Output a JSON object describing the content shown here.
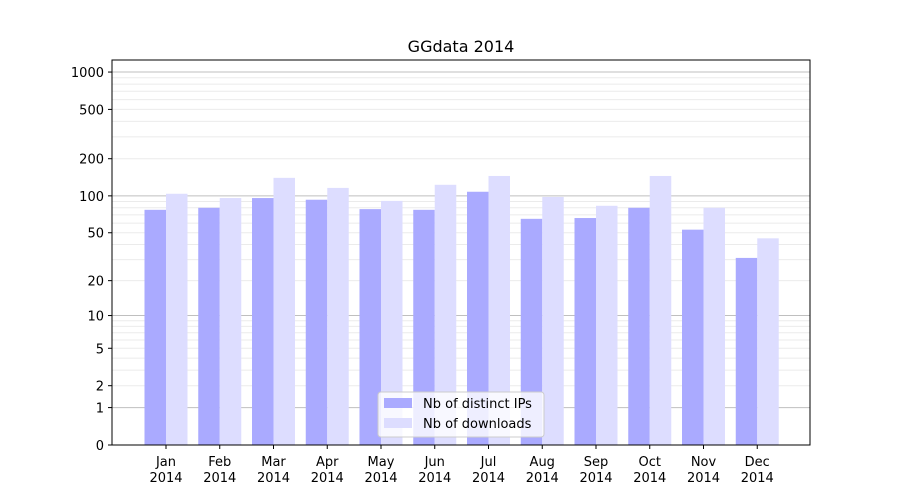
{
  "chart_data": {
    "type": "bar",
    "title": "GGdata 2014",
    "xlabel": "",
    "ylabel": "",
    "y_scale": "symlog",
    "ylim": [
      0,
      1200
    ],
    "y_ticks": [
      0,
      1,
      2,
      5,
      10,
      20,
      50,
      100,
      200,
      500,
      1000
    ],
    "grid": true,
    "legend_position": "lower-center",
    "categories": [
      "Jan\n2014",
      "Feb\n2014",
      "Mar\n2014",
      "Apr\n2014",
      "May\n2014",
      "Jun\n2014",
      "Jul\n2014",
      "Aug\n2014",
      "Sep\n2014",
      "Oct\n2014",
      "Nov\n2014",
      "Dec\n2014"
    ],
    "series": [
      {
        "name": "Nb of distinct IPs",
        "color": "#aaaaff",
        "values": [
          77,
          80,
          96,
          93,
          78,
          77,
          108,
          65,
          66,
          80,
          53,
          31
        ]
      },
      {
        "name": "Nb of downloads",
        "color": "#ddddff",
        "values": [
          104,
          96,
          140,
          116,
          91,
          123,
          145,
          98,
          83,
          145,
          80,
          45
        ]
      }
    ]
  }
}
